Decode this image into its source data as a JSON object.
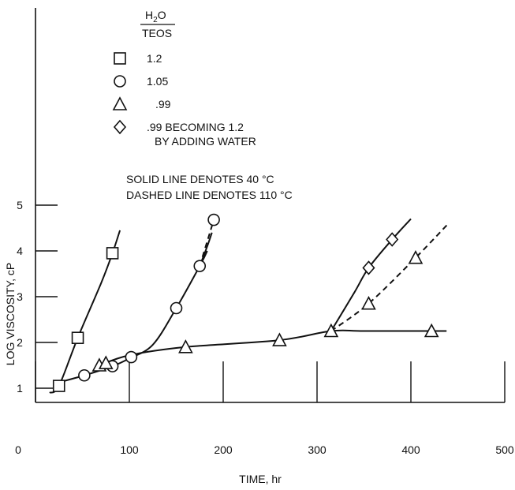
{
  "chart_data": {
    "type": "scatter",
    "xlabel": "TIME, hr",
    "ylabel": "LOG VISCOSITY, cP",
    "xlim": [
      0,
      500
    ],
    "ylim": [
      0,
      6
    ],
    "x_ticks": [
      0,
      100,
      200,
      300,
      400,
      500
    ],
    "y_ticks": [
      1,
      2,
      3,
      4,
      5
    ],
    "legend": {
      "title_numerator": "H",
      "title_subscript": "2",
      "title_numerator_suffix": "O",
      "title_denominator": "TEOS",
      "placement": "top-left",
      "entries": [
        {
          "marker": "square",
          "label": "1.2"
        },
        {
          "marker": "circle",
          "label": "1.05"
        },
        {
          "marker": "triangle",
          "label": ".99"
        },
        {
          "marker": "diamond",
          "label": ".99 BECOMING 1.2",
          "label_line2": "BY ADDING WATER"
        }
      ]
    },
    "notes": [
      "SOLID LINE DENOTES 40 °C",
      "DASHED LINE DENOTES 110 °C"
    ],
    "series": [
      {
        "marker": "square",
        "points": [
          [
            25,
            1.05
          ],
          [
            45,
            2.1
          ],
          [
            82,
            3.95
          ]
        ]
      },
      {
        "marker": "circle",
        "points": [
          [
            52,
            1.28
          ],
          [
            82,
            1.48
          ],
          [
            102,
            1.68
          ],
          [
            150,
            2.75
          ],
          [
            175,
            3.67
          ],
          [
            190,
            4.68
          ]
        ]
      },
      {
        "marker": "triangle",
        "points": [
          [
            68,
            1.5
          ],
          [
            75,
            1.55
          ],
          [
            160,
            1.9
          ],
          [
            260,
            2.05
          ],
          [
            315,
            2.25
          ],
          [
            355,
            2.85
          ],
          [
            405,
            3.85
          ],
          [
            422,
            2.25
          ]
        ]
      },
      {
        "marker": "diamond",
        "points": [
          [
            355,
            3.63
          ],
          [
            380,
            4.25
          ]
        ]
      }
    ],
    "curves": [
      {
        "style": "solid",
        "points": [
          [
            15,
            0.9
          ],
          [
            25,
            1.05
          ],
          [
            45,
            2.1
          ],
          [
            70,
            3.3
          ],
          [
            82,
            3.95
          ],
          [
            90,
            4.45
          ]
        ]
      },
      {
        "style": "solid",
        "points": [
          [
            20,
            1.1
          ],
          [
            52,
            1.28
          ],
          [
            82,
            1.48
          ],
          [
            100,
            1.65
          ],
          [
            125,
            1.95
          ],
          [
            150,
            2.75
          ],
          [
            175,
            3.67
          ],
          [
            183,
            4.0
          ]
        ]
      },
      {
        "style": "dashed",
        "points": [
          [
            175,
            3.67
          ],
          [
            190,
            4.68
          ]
        ]
      },
      {
        "style": "solid",
        "points": [
          [
            175,
            3.67
          ],
          [
            183,
            4.1
          ],
          [
            188,
            4.4
          ]
        ]
      },
      {
        "style": "solid",
        "points": [
          [
            68,
            1.5
          ],
          [
            100,
            1.72
          ],
          [
            160,
            1.9
          ],
          [
            260,
            2.05
          ],
          [
            315,
            2.25
          ],
          [
            350,
            2.25
          ],
          [
            422,
            2.25
          ],
          [
            438,
            2.25
          ]
        ]
      },
      {
        "style": "solid",
        "points": [
          [
            315,
            2.25
          ],
          [
            340,
            3.1
          ],
          [
            355,
            3.63
          ],
          [
            380,
            4.25
          ],
          [
            400,
            4.7
          ]
        ]
      },
      {
        "style": "dashed",
        "points": [
          [
            315,
            2.25
          ],
          [
            355,
            2.85
          ],
          [
            405,
            3.85
          ],
          [
            440,
            4.6
          ]
        ]
      }
    ]
  }
}
